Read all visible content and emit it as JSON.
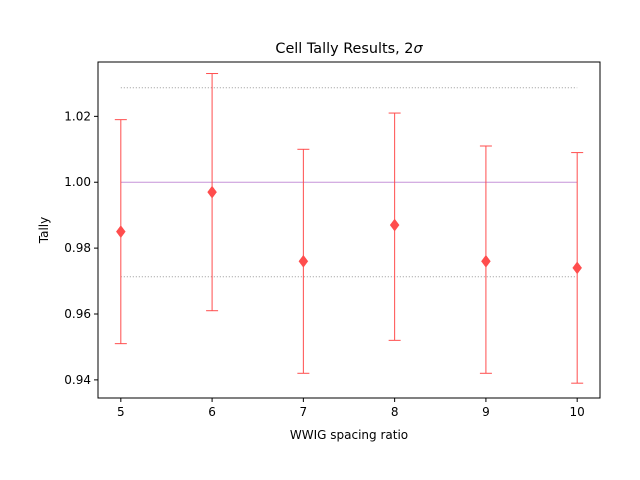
{
  "chart_data": {
    "type": "scatter",
    "title": "Cell Tally Results, 2σ",
    "title_main": "Cell Tally Results, 2",
    "title_symbol": "σ",
    "xlabel": "WWIG spacing ratio",
    "ylabel": "Tally",
    "xlim": [
      4.75,
      10.25
    ],
    "ylim": [
      0.9345,
      1.0365
    ],
    "xticks": [
      5,
      6,
      7,
      8,
      9,
      10
    ],
    "xtick_labels": [
      "5",
      "6",
      "7",
      "8",
      "9",
      "10"
    ],
    "yticks": [
      0.94,
      0.96,
      0.98,
      1.0,
      1.02
    ],
    "ytick_labels": [
      "0.94",
      "0.96",
      "0.98",
      "1.00",
      "1.02"
    ],
    "grid": false,
    "series": [
      {
        "x": [
          5,
          6,
          7,
          8,
          9,
          10
        ],
        "y": [
          0.985,
          0.997,
          0.976,
          0.987,
          0.976,
          0.974
        ],
        "yerr_low": [
          0.951,
          0.961,
          0.942,
          0.952,
          0.942,
          0.939
        ],
        "yerr_high": [
          1.019,
          1.033,
          1.01,
          1.021,
          1.011,
          1.009
        ],
        "marker": "diamond",
        "color": "#ff4d4d"
      }
    ],
    "reference_lines": [
      {
        "y": 1.0,
        "style": "solid",
        "color": "#c593d8"
      },
      {
        "y": 1.0287,
        "style": "dotted",
        "color": "#999999"
      },
      {
        "y": 0.9713,
        "style": "dotted",
        "color": "#999999"
      }
    ]
  }
}
